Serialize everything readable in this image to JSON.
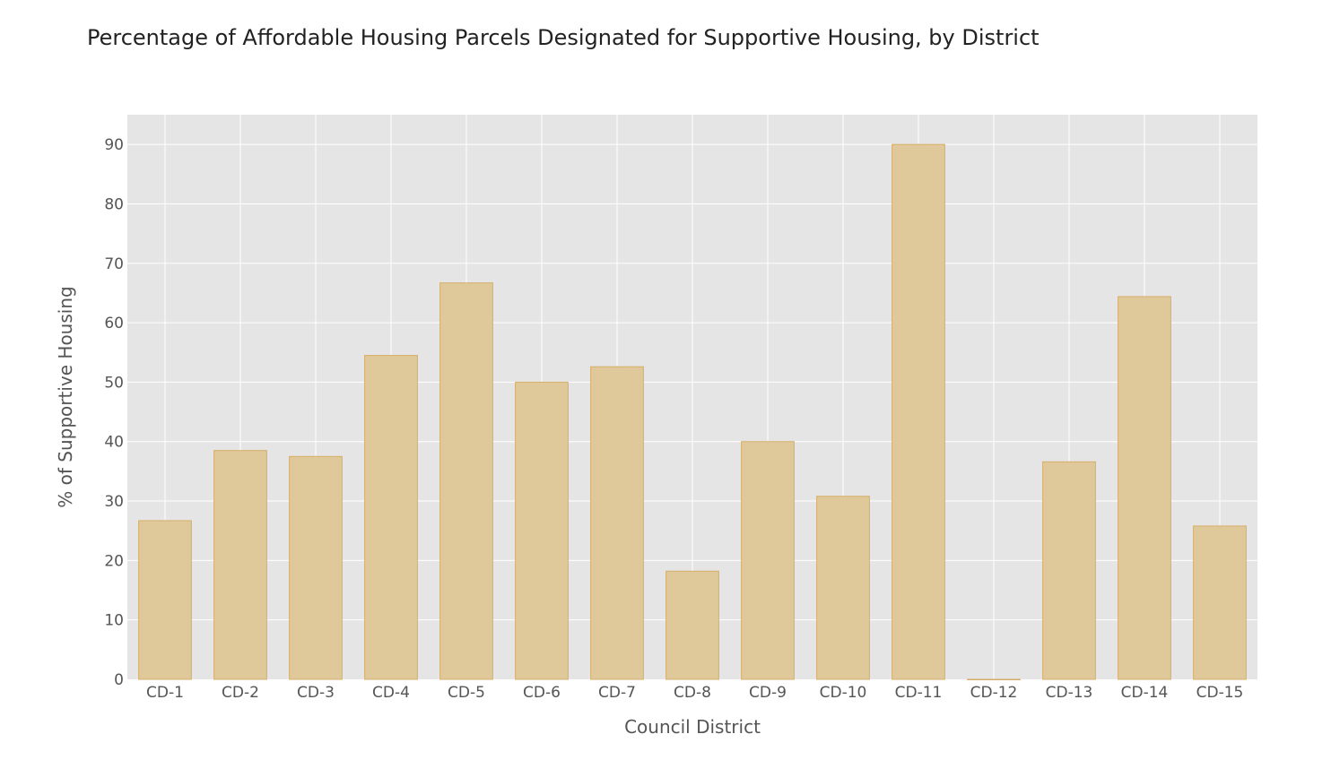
{
  "chart_data": {
    "type": "bar",
    "title": "Percentage of Affordable Housing Parcels Designated for Supportive Housing, by District",
    "xlabel": "Council District",
    "ylabel": "% of Supportive Housing",
    "categories": [
      "CD-1",
      "CD-2",
      "CD-3",
      "CD-4",
      "CD-5",
      "CD-6",
      "CD-7",
      "CD-8",
      "CD-9",
      "CD-10",
      "CD-11",
      "CD-12",
      "CD-13",
      "CD-14",
      "CD-15"
    ],
    "values": [
      26.7,
      38.5,
      37.5,
      54.5,
      66.7,
      50.0,
      52.6,
      18.2,
      40.0,
      30.8,
      90.0,
      0,
      36.6,
      64.4,
      25.8
    ],
    "ylim": [
      0,
      95
    ],
    "yticks": [
      0,
      10,
      20,
      30,
      40,
      50,
      60,
      70,
      80,
      90
    ],
    "grid": true,
    "colors": {
      "bar_fill": "#dfc899",
      "bar_stroke": "#d6ae6a",
      "plot_bg": "#e5e5e5",
      "grid": "#ffffff"
    }
  }
}
